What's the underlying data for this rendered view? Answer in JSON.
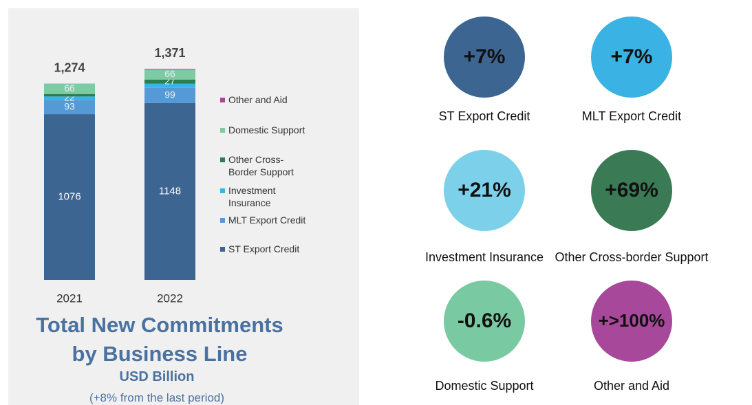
{
  "chart_data": {
    "type": "stacked_bar",
    "title": "Total New Commitments by Business Line",
    "subtitle": "USD Billion",
    "note": "(+8% from the last period)",
    "categories": [
      "2021",
      "2022"
    ],
    "totals": {
      "values": [
        1274,
        1371
      ],
      "value_labels": [
        "1,274",
        "1,371"
      ]
    },
    "series": [
      {
        "name": "ST Export Credit",
        "color": "#3d6591",
        "values": [
          1076,
          1148
        ]
      },
      {
        "name": "MLT Export Credit",
        "color": "#559ad6",
        "values": [
          93,
          99
        ]
      },
      {
        "name": "Investment Insurance",
        "color": "#3ab3e6",
        "values": [
          22,
          27
        ],
        "value_labels": [
          "22",
          null
        ]
      },
      {
        "name": "Other Cross-Border Support",
        "color": "#2e7d4f",
        "values": [
          16,
          27
        ],
        "value_labels": [
          null,
          "27"
        ]
      },
      {
        "name": "Domestic Support",
        "color": "#7ccba2",
        "values": [
          66,
          66
        ]
      },
      {
        "name": "Other and Aid",
        "color": "#a8489b",
        "values": [
          1,
          4
        ],
        "value_labels": [
          null,
          null
        ]
      }
    ]
  },
  "growth": [
    {
      "name": "ST Export Credit",
      "change": "+7%",
      "color": "#3d6591"
    },
    {
      "name": "MLT Export Credit",
      "change": "+7%",
      "color": "#3ab3e4"
    },
    {
      "name": "Investment Insurance",
      "change": "+21%",
      "color": "#7dd0ea"
    },
    {
      "name": "Other Cross-border Support",
      "change": "+69%",
      "color": "#3a7a55"
    },
    {
      "name": "Domestic Support",
      "change": "-0.6%",
      "color": "#79c9a3"
    },
    {
      "name": "Other and Aid",
      "change": "+>100%",
      "color": "#a8489b"
    }
  ]
}
